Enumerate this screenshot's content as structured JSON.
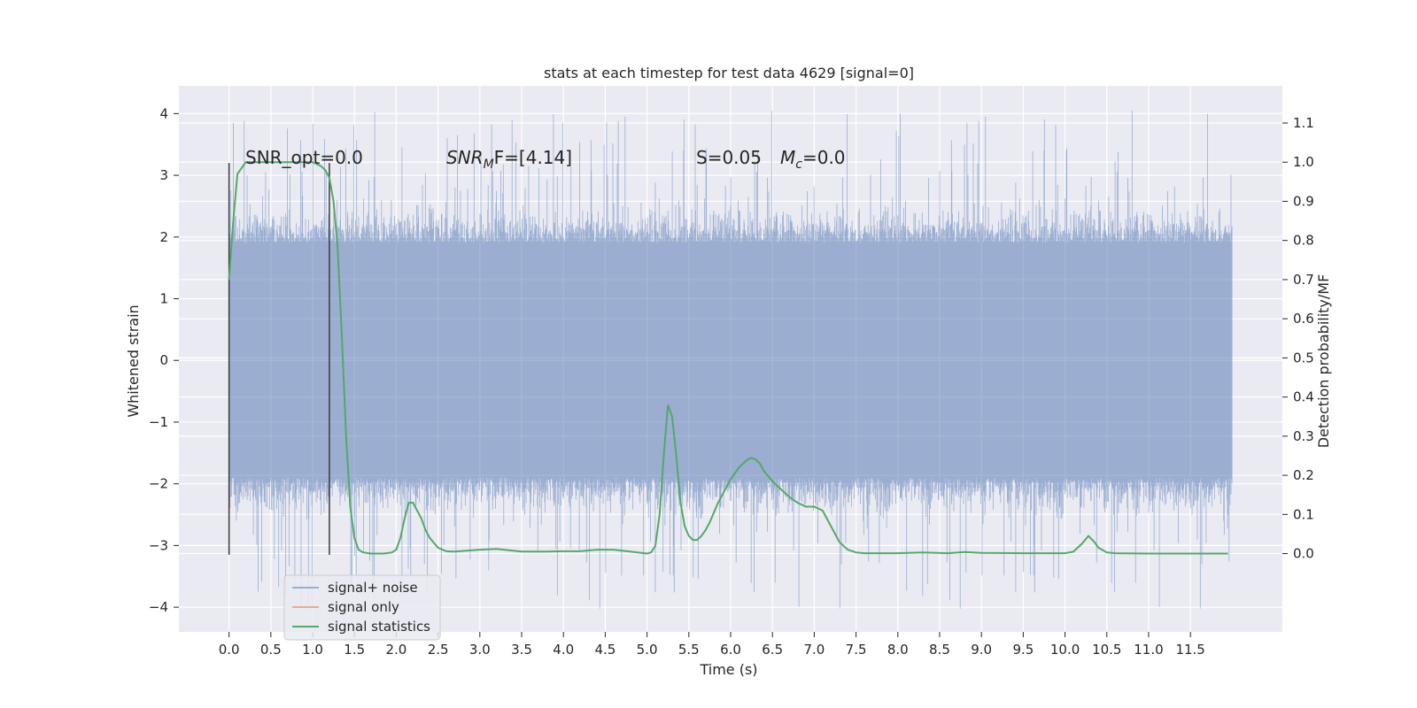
{
  "chart_data": {
    "type": "line",
    "title": "stats at each timestep for test data 4629 [signal=0]",
    "xlabel": "Time (s)",
    "ylabel": "Whitened strain",
    "ylabel_right": "Detection probability/MF",
    "xlim": [
      -0.6,
      12.6
    ],
    "ylim": [
      -4.4,
      4.45
    ],
    "ylim_right": [
      -0.2,
      1.195
    ],
    "x_ticks": [
      "0.0",
      "0.5",
      "1.0",
      "1.5",
      "2.0",
      "2.5",
      "3.0",
      "3.5",
      "4.0",
      "4.5",
      "5.0",
      "5.5",
      "6.0",
      "6.5",
      "7.0",
      "7.5",
      "8.0",
      "8.5",
      "9.0",
      "9.5",
      "10.0",
      "10.5",
      "11.0",
      "11.5"
    ],
    "y_ticks_left": [
      "4",
      "3",
      "2",
      "1",
      "0",
      "−1",
      "−2",
      "−3",
      "−4"
    ],
    "y_ticks_right": [
      "1.1",
      "1.0",
      "0.9",
      "0.8",
      "0.7",
      "0.6",
      "0.5",
      "0.4",
      "0.3",
      "0.2",
      "0.1",
      "0.0"
    ],
    "grid": true,
    "legend_position": "lower-left",
    "annotations": {
      "snr_opt": "SNR_opt=0.0",
      "snr_mf_main": "SNR",
      "snr_mf_sub": "M",
      "snr_mf_rest": "F=[4.14]",
      "s_stat": "S=0.05",
      "mc_main": "M",
      "mc_sub": "c",
      "mc_rest": "=0.0"
    },
    "vertical_markers": [
      0.0,
      1.2
    ],
    "series": [
      {
        "name": "signal+ noise",
        "color": "#4c72b0",
        "axis": "left",
        "x_range": [
          0.0,
          12.0
        ],
        "typical_envelope": [
          -1.9,
          1.9
        ],
        "extremes": {
          "max": 4.05,
          "min": -4.05
        }
      },
      {
        "name": "signal only",
        "color": "#dd8452",
        "axis": "left",
        "values": []
      },
      {
        "name": "signal statistics",
        "color": "#55a868",
        "axis": "right",
        "points": [
          [
            0.0,
            0.7
          ],
          [
            0.05,
            0.85
          ],
          [
            0.1,
            0.97
          ],
          [
            0.2,
            1.0
          ],
          [
            0.4,
            1.0
          ],
          [
            0.6,
            1.0
          ],
          [
            0.8,
            1.0
          ],
          [
            1.0,
            1.0
          ],
          [
            1.1,
            0.99
          ],
          [
            1.15,
            0.98
          ],
          [
            1.2,
            0.96
          ],
          [
            1.25,
            0.9
          ],
          [
            1.3,
            0.78
          ],
          [
            1.35,
            0.55
          ],
          [
            1.4,
            0.3
          ],
          [
            1.45,
            0.12
          ],
          [
            1.5,
            0.04
          ],
          [
            1.55,
            0.01
          ],
          [
            1.6,
            0.003
          ],
          [
            1.7,
            0.0
          ],
          [
            1.85,
            0.0
          ],
          [
            1.95,
            0.003
          ],
          [
            2.0,
            0.01
          ],
          [
            2.05,
            0.04
          ],
          [
            2.1,
            0.09
          ],
          [
            2.15,
            0.13
          ],
          [
            2.2,
            0.13
          ],
          [
            2.25,
            0.11
          ],
          [
            2.3,
            0.09
          ],
          [
            2.35,
            0.06
          ],
          [
            2.4,
            0.04
          ],
          [
            2.5,
            0.015
          ],
          [
            2.6,
            0.006
          ],
          [
            2.7,
            0.005
          ],
          [
            3.0,
            0.01
          ],
          [
            3.2,
            0.012
          ],
          [
            3.5,
            0.005
          ],
          [
            3.8,
            0.005
          ],
          [
            4.0,
            0.006
          ],
          [
            4.2,
            0.006
          ],
          [
            4.4,
            0.01
          ],
          [
            4.6,
            0.01
          ],
          [
            4.8,
            0.005
          ],
          [
            5.0,
            0.0
          ],
          [
            5.05,
            0.003
          ],
          [
            5.1,
            0.02
          ],
          [
            5.15,
            0.1
          ],
          [
            5.2,
            0.25
          ],
          [
            5.25,
            0.38
          ],
          [
            5.3,
            0.35
          ],
          [
            5.35,
            0.25
          ],
          [
            5.4,
            0.13
          ],
          [
            5.45,
            0.07
          ],
          [
            5.5,
            0.045
          ],
          [
            5.55,
            0.035
          ],
          [
            5.6,
            0.035
          ],
          [
            5.65,
            0.045
          ],
          [
            5.7,
            0.06
          ],
          [
            5.75,
            0.08
          ],
          [
            5.8,
            0.105
          ],
          [
            5.85,
            0.13
          ],
          [
            5.9,
            0.15
          ],
          [
            6.0,
            0.19
          ],
          [
            6.1,
            0.22
          ],
          [
            6.2,
            0.24
          ],
          [
            6.25,
            0.245
          ],
          [
            6.3,
            0.24
          ],
          [
            6.35,
            0.23
          ],
          [
            6.4,
            0.21
          ],
          [
            6.5,
            0.185
          ],
          [
            6.6,
            0.165
          ],
          [
            6.7,
            0.145
          ],
          [
            6.8,
            0.13
          ],
          [
            6.9,
            0.12
          ],
          [
            7.0,
            0.12
          ],
          [
            7.1,
            0.11
          ],
          [
            7.2,
            0.07
          ],
          [
            7.3,
            0.03
          ],
          [
            7.4,
            0.01
          ],
          [
            7.5,
            0.003
          ],
          [
            7.6,
            0.001
          ],
          [
            8.0,
            0.001
          ],
          [
            8.3,
            0.003
          ],
          [
            8.6,
            0.001
          ],
          [
            8.8,
            0.004
          ],
          [
            9.0,
            0.002
          ],
          [
            9.5,
            0.001
          ],
          [
            10.0,
            0.001
          ],
          [
            10.1,
            0.005
          ],
          [
            10.2,
            0.025
          ],
          [
            10.28,
            0.045
          ],
          [
            10.35,
            0.03
          ],
          [
            10.4,
            0.015
          ],
          [
            10.5,
            0.003
          ],
          [
            10.6,
            0.001
          ],
          [
            11.0,
            0.0
          ],
          [
            11.5,
            0.0
          ],
          [
            11.95,
            0.0
          ]
        ]
      }
    ]
  }
}
